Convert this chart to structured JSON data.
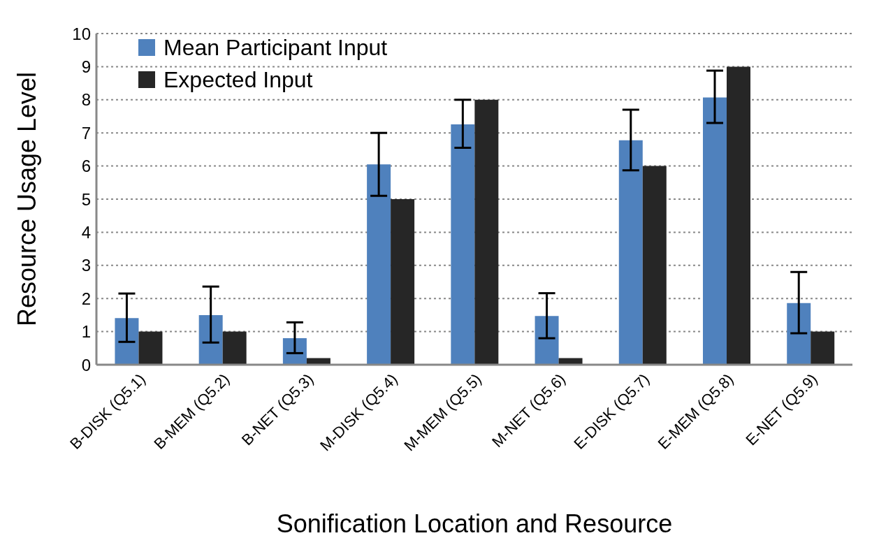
{
  "chart_data": {
    "type": "bar",
    "xlabel": "Sonification Location and Resource",
    "ylabel": "Resource Usage Level",
    "categories": [
      "B-DISK (Q5.1)",
      "B-MEM (Q5.2)",
      "B-NET (Q5.3)",
      "M-DISK (Q5.4)",
      "M-MEM (Q5.5)",
      "M-NET (Q5.6)",
      "E-DISK (Q5.7)",
      "E-MEM (Q5.8)",
      "E-NET (Q5.9)"
    ],
    "series": [
      {
        "name": "Mean Participant Input",
        "color": "#4f81bd",
        "values": [
          1.41,
          1.5,
          0.8,
          6.05,
          7.26,
          1.47,
          6.78,
          8.07,
          1.86
        ],
        "errors": [
          [
            0.69,
            2.15
          ],
          [
            0.67,
            2.36
          ],
          [
            0.35,
            1.28
          ],
          [
            5.1,
            7.0
          ],
          [
            6.55,
            8.0
          ],
          [
            0.8,
            2.16
          ],
          [
            5.87,
            7.7
          ],
          [
            7.3,
            8.88
          ],
          [
            0.95,
            2.8
          ]
        ]
      },
      {
        "name": "Expected Input",
        "color": "#262626",
        "values": [
          1,
          1,
          0.2,
          5,
          8,
          0.2,
          6,
          9,
          1
        ]
      }
    ],
    "ylim": [
      0,
      10
    ],
    "yticks": [
      0,
      1,
      2,
      3,
      4,
      5,
      6,
      7,
      8,
      9,
      10
    ],
    "grid": "y",
    "legend": "top left"
  }
}
